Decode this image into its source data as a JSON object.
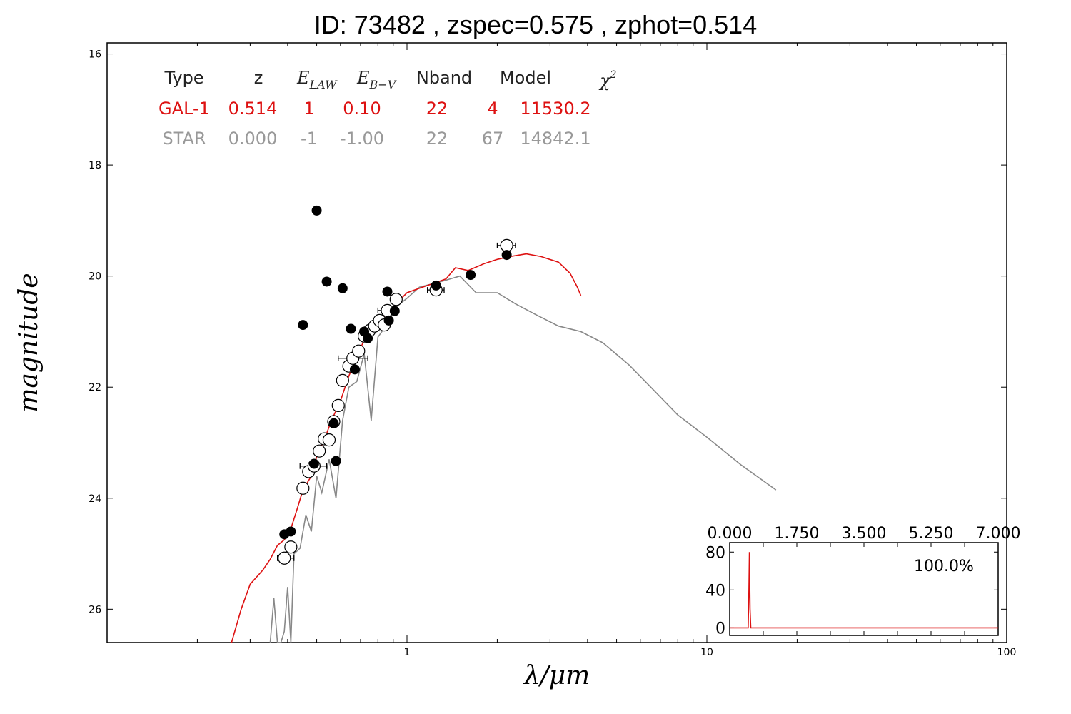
{
  "title": "ID:  73482 , zspec=0.575 , zphot=0.514",
  "chart_data": {
    "type": "scatter",
    "xlabel": "λ/μm",
    "ylabel": "magnitude",
    "xscale": "log",
    "xlim": [
      0.1,
      100
    ],
    "ylim": [
      26.6,
      15.8
    ],
    "y_inverted": true,
    "x_tick_labels": [
      "1",
      "10",
      "100"
    ],
    "y_ticks": [
      16,
      18,
      20,
      22,
      24,
      26
    ],
    "grid": false,
    "colors": {
      "galaxy": "#dd1111",
      "star": "#888888",
      "text": "#000000"
    },
    "fit_table": {
      "headers": [
        "Type",
        "z",
        "E_LAW",
        "E_B−V",
        "Nband",
        "Model",
        "χ²"
      ],
      "header_math": {
        "E_LAW_base": "E",
        "E_LAW_sub": "LAW",
        "EBV_base": "E",
        "EBV_sub": "B−V",
        "chi_base": "χ",
        "chi_sup": "2"
      },
      "rows": [
        {
          "name": "galaxy",
          "color": "#dd1111",
          "cells": [
            "GAL-1",
            "0.514",
            "1",
            "0.10",
            "22",
            "4",
            "11530.2"
          ]
        },
        {
          "name": "star",
          "color": "#999999",
          "cells": [
            "STAR",
            "0.000",
            "-1",
            "-1.00",
            "22",
            "67",
            "14842.1"
          ]
        }
      ]
    },
    "observed_points": [
      {
        "x": 0.39,
        "y": 25.08
      },
      {
        "x": 0.41,
        "y": 24.88
      },
      {
        "x": 0.45,
        "y": 23.82
      },
      {
        "x": 0.47,
        "y": 23.52
      },
      {
        "x": 0.49,
        "y": 23.42
      },
      {
        "x": 0.51,
        "y": 23.15
      },
      {
        "x": 0.53,
        "y": 22.93
      },
      {
        "x": 0.55,
        "y": 22.95
      },
      {
        "x": 0.57,
        "y": 22.62
      },
      {
        "x": 0.59,
        "y": 22.33
      },
      {
        "x": 0.61,
        "y": 21.88
      },
      {
        "x": 0.64,
        "y": 21.62
      },
      {
        "x": 0.66,
        "y": 21.48
      },
      {
        "x": 0.69,
        "y": 21.35
      },
      {
        "x": 0.72,
        "y": 21.08
      },
      {
        "x": 0.75,
        "y": 20.98
      },
      {
        "x": 0.78,
        "y": 20.9
      },
      {
        "x": 0.81,
        "y": 20.8
      },
      {
        "x": 0.84,
        "y": 20.88
      },
      {
        "x": 0.86,
        "y": 20.62
      },
      {
        "x": 0.92,
        "y": 20.42
      },
      {
        "x": 1.25,
        "y": 20.25
      },
      {
        "x": 2.15,
        "y": 19.45
      }
    ],
    "observed_errors": [
      {
        "x": 0.39,
        "y": 25.08,
        "xlo": 0.37,
        "xhi": 0.42
      },
      {
        "x": 0.49,
        "y": 23.42,
        "xlo": 0.44,
        "xhi": 0.54
      },
      {
        "x": 0.66,
        "y": 21.48,
        "xlo": 0.59,
        "xhi": 0.74
      },
      {
        "x": 0.86,
        "y": 20.62,
        "xlo": 0.8,
        "xhi": 0.93
      },
      {
        "x": 1.25,
        "y": 20.25,
        "xlo": 1.17,
        "xhi": 1.33
      },
      {
        "x": 2.15,
        "y": 19.45,
        "xlo": 2.0,
        "xhi": 2.3
      }
    ],
    "model_points": [
      {
        "x": 0.39,
        "y": 24.65
      },
      {
        "x": 0.41,
        "y": 24.6
      },
      {
        "x": 0.45,
        "y": 20.88
      },
      {
        "x": 0.49,
        "y": 23.38
      },
      {
        "x": 0.5,
        "y": 18.82
      },
      {
        "x": 0.54,
        "y": 20.1
      },
      {
        "x": 0.57,
        "y": 22.65
      },
      {
        "x": 0.58,
        "y": 23.33
      },
      {
        "x": 0.61,
        "y": 20.22
      },
      {
        "x": 0.65,
        "y": 20.95
      },
      {
        "x": 0.67,
        "y": 21.68
      },
      {
        "x": 0.72,
        "y": 21.0
      },
      {
        "x": 0.74,
        "y": 21.12
      },
      {
        "x": 0.86,
        "y": 20.28
      },
      {
        "x": 0.87,
        "y": 20.8
      },
      {
        "x": 0.91,
        "y": 20.63
      },
      {
        "x": 1.25,
        "y": 20.17
      },
      {
        "x": 1.63,
        "y": 19.98
      },
      {
        "x": 2.15,
        "y": 19.62
      }
    ],
    "galaxy_model": [
      {
        "x": 0.26,
        "y": 26.6
      },
      {
        "x": 0.28,
        "y": 26.0
      },
      {
        "x": 0.3,
        "y": 25.55
      },
      {
        "x": 0.33,
        "y": 25.3
      },
      {
        "x": 0.35,
        "y": 25.1
      },
      {
        "x": 0.37,
        "y": 24.85
      },
      {
        "x": 0.39,
        "y": 24.75
      },
      {
        "x": 0.41,
        "y": 24.55
      },
      {
        "x": 0.43,
        "y": 24.2
      },
      {
        "x": 0.45,
        "y": 23.85
      },
      {
        "x": 0.48,
        "y": 23.6
      },
      {
        "x": 0.5,
        "y": 23.25
      },
      {
        "x": 0.53,
        "y": 22.95
      },
      {
        "x": 0.56,
        "y": 22.6
      },
      {
        "x": 0.6,
        "y": 22.25
      },
      {
        "x": 0.64,
        "y": 21.8
      },
      {
        "x": 0.68,
        "y": 21.45
      },
      {
        "x": 0.72,
        "y": 21.15
      },
      {
        "x": 0.78,
        "y": 20.9
      },
      {
        "x": 0.85,
        "y": 20.7
      },
      {
        "x": 0.92,
        "y": 20.5
      },
      {
        "x": 1.0,
        "y": 20.3
      },
      {
        "x": 1.1,
        "y": 20.22
      },
      {
        "x": 1.2,
        "y": 20.15
      },
      {
        "x": 1.35,
        "y": 20.05
      },
      {
        "x": 1.45,
        "y": 19.85
      },
      {
        "x": 1.6,
        "y": 19.9
      },
      {
        "x": 1.8,
        "y": 19.78
      },
      {
        "x": 2.0,
        "y": 19.7
      },
      {
        "x": 2.2,
        "y": 19.65
      },
      {
        "x": 2.5,
        "y": 19.6
      },
      {
        "x": 2.8,
        "y": 19.65
      },
      {
        "x": 3.2,
        "y": 19.75
      },
      {
        "x": 3.5,
        "y": 19.95
      },
      {
        "x": 3.7,
        "y": 20.2
      },
      {
        "x": 3.8,
        "y": 20.35
      }
    ],
    "star_model": [
      {
        "x": 0.35,
        "y": 26.6
      },
      {
        "x": 0.36,
        "y": 25.8
      },
      {
        "x": 0.37,
        "y": 26.6
      },
      {
        "x": 0.38,
        "y": 26.6
      },
      {
        "x": 0.39,
        "y": 26.4
      },
      {
        "x": 0.4,
        "y": 25.6
      },
      {
        "x": 0.41,
        "y": 26.6
      },
      {
        "x": 0.42,
        "y": 25.0
      },
      {
        "x": 0.44,
        "y": 24.9
      },
      {
        "x": 0.46,
        "y": 24.3
      },
      {
        "x": 0.48,
        "y": 24.6
      },
      {
        "x": 0.5,
        "y": 23.6
      },
      {
        "x": 0.52,
        "y": 23.9
      },
      {
        "x": 0.55,
        "y": 23.3
      },
      {
        "x": 0.58,
        "y": 24.0
      },
      {
        "x": 0.61,
        "y": 22.6
      },
      {
        "x": 0.64,
        "y": 22.0
      },
      {
        "x": 0.68,
        "y": 21.9
      },
      {
        "x": 0.72,
        "y": 21.4
      },
      {
        "x": 0.76,
        "y": 22.6
      },
      {
        "x": 0.8,
        "y": 21.1
      },
      {
        "x": 0.85,
        "y": 20.9
      },
      {
        "x": 0.9,
        "y": 20.6
      },
      {
        "x": 1.0,
        "y": 20.4
      },
      {
        "x": 1.1,
        "y": 20.2
      },
      {
        "x": 1.3,
        "y": 20.1
      },
      {
        "x": 1.5,
        "y": 20.0
      },
      {
        "x": 1.7,
        "y": 20.3
      },
      {
        "x": 2.0,
        "y": 20.3
      },
      {
        "x": 2.3,
        "y": 20.5
      },
      {
        "x": 2.7,
        "y": 20.7
      },
      {
        "x": 3.2,
        "y": 20.9
      },
      {
        "x": 3.8,
        "y": 21.0
      },
      {
        "x": 4.5,
        "y": 21.2
      },
      {
        "x": 5.5,
        "y": 21.6
      },
      {
        "x": 6.5,
        "y": 22.0
      },
      {
        "x": 8.0,
        "y": 22.5
      },
      {
        "x": 10.0,
        "y": 22.9
      },
      {
        "x": 13.0,
        "y": 23.4
      },
      {
        "x": 17.0,
        "y": 23.85
      }
    ],
    "inset": {
      "type": "line",
      "x_tick_labels": [
        "0.000",
        "1.750",
        "3.500",
        "5.250",
        "7.000"
      ],
      "xlim": [
        0,
        7
      ],
      "y_ticks": [
        0,
        40,
        80
      ],
      "ylim": [
        -8,
        90
      ],
      "annotation": "100.0%",
      "pdz": [
        {
          "x": 0,
          "y": 0
        },
        {
          "x": 0.48,
          "y": 0
        },
        {
          "x": 0.5,
          "y": 40
        },
        {
          "x": 0.514,
          "y": 80
        },
        {
          "x": 0.53,
          "y": 20
        },
        {
          "x": 0.55,
          "y": 0
        },
        {
          "x": 7,
          "y": 0
        }
      ]
    }
  }
}
